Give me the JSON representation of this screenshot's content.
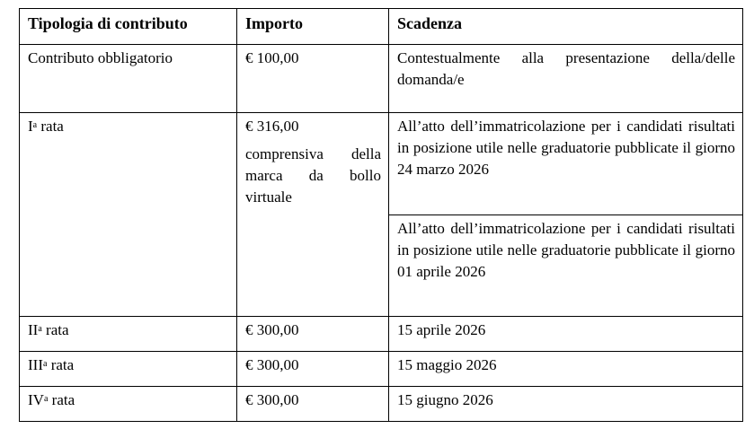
{
  "headers": [
    "Tipologia di contributo",
    "Importo",
    "Scadenza"
  ],
  "rows": [
    {
      "type": "Contributo obbligatorio",
      "amount": "€ 100,00",
      "deadline": "Contestualmente alla presentazione della/delle domanda/e"
    },
    {
      "type_base": "I",
      "type_sup": "a",
      "type_rest": " rata",
      "amount": "€ 316,00",
      "amount_note": "comprensiva della marca da bollo virtuale",
      "deadlines": [
        "All’atto dell’immatricolazione per i candidati risultati in posizione utile nelle graduatorie pubblicate il giorno 24 marzo 2026",
        "All’atto dell’immatricolazione per i candidati risultati in posizione utile nelle graduatorie pubblicate il giorno 01 aprile 2026"
      ]
    },
    {
      "type_base": "II",
      "type_sup": "a",
      "type_rest": " rata",
      "amount": "€ 300,00",
      "deadline": "15 aprile 2026"
    },
    {
      "type_base": "III",
      "type_sup": "a",
      "type_rest": " rata",
      "amount": "€ 300,00",
      "deadline": "15 maggio 2026"
    },
    {
      "type_base": "IV",
      "type_sup": "a",
      "type_rest": " rata",
      "amount": "€ 300,00",
      "deadline": "15 giugno 2026"
    }
  ]
}
